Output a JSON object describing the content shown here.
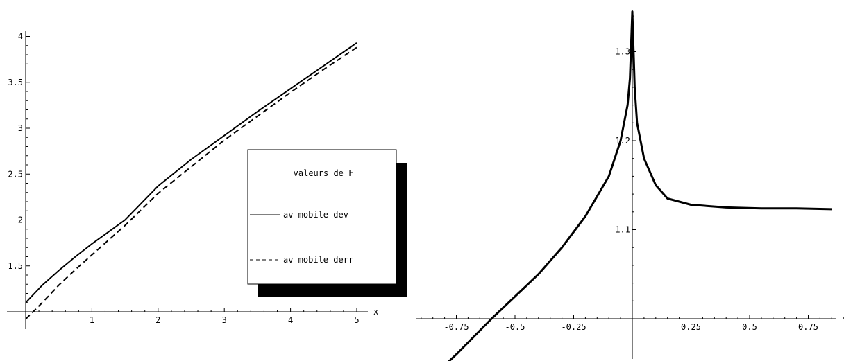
{
  "chart_data": [
    {
      "type": "line",
      "xlabel": "x",
      "ylabel": "",
      "xlim": [
        0,
        5.2
      ],
      "ylim": [
        0.95,
        4.05
      ],
      "x_ticks": [
        1,
        2,
        3,
        4,
        5
      ],
      "y_ticks": [
        1.5,
        2,
        2.5,
        3,
        3.5,
        4
      ],
      "x_tick_labels": [
        "1",
        "2",
        "3",
        "4",
        "5"
      ],
      "y_tick_labels": [
        "1.5",
        "2",
        "2.5",
        "3",
        "3.5",
        "4"
      ],
      "grid": false,
      "legend": {
        "title": "valeurs de F",
        "placement": "lower-right",
        "entries": [
          {
            "label": "av mobile dev",
            "style": "solid"
          },
          {
            "label": "av mobile derr",
            "style": "dashed"
          }
        ]
      },
      "series": [
        {
          "name": "av mobile dev",
          "style": "solid",
          "color": "#000000",
          "points": [
            [
              0,
              1.1
            ],
            [
              0.25,
              1.29
            ],
            [
              0.5,
              1.45
            ],
            [
              0.75,
              1.6
            ],
            [
              1,
              1.74
            ],
            [
              1.5,
              2.0
            ],
            [
              2,
              2.37
            ],
            [
              2.5,
              2.66
            ],
            [
              3,
              2.92
            ],
            [
              3.5,
              3.18
            ],
            [
              4,
              3.43
            ],
            [
              4.5,
              3.68
            ],
            [
              5,
              3.93
            ]
          ]
        },
        {
          "name": "av mobile derr",
          "style": "dashed",
          "color": "#000000",
          "points": [
            [
              0,
              0.92
            ],
            [
              0.25,
              1.1
            ],
            [
              0.5,
              1.29
            ],
            [
              0.75,
              1.46
            ],
            [
              1,
              1.62
            ],
            [
              1.5,
              1.94
            ],
            [
              2,
              2.29
            ],
            [
              2.5,
              2.58
            ],
            [
              3,
              2.87
            ],
            [
              3.5,
              3.13
            ],
            [
              4,
              3.39
            ],
            [
              4.5,
              3.64
            ],
            [
              5,
              3.88
            ]
          ]
        }
      ]
    },
    {
      "type": "line",
      "xlabel": "",
      "ylabel": "",
      "xlim": [
        -0.9,
        0.9
      ],
      "ylim": [
        1.0,
        1.35
      ],
      "x_ticks": [
        -0.75,
        -0.5,
        -0.25,
        0.25,
        0.5,
        0.75
      ],
      "y_ticks": [
        1.1,
        1.2,
        1.3
      ],
      "x_tick_labels": [
        "-0.75",
        "-0.5",
        "-0.25",
        "0.25",
        "0.5",
        "0.75"
      ],
      "y_tick_labels": [
        "1.1",
        "1.2",
        "1.3"
      ],
      "grid": false,
      "series": [
        {
          "style": "solid",
          "color": "#000000",
          "points": [
            [
              -0.85,
              0.935
            ],
            [
              -0.75,
              0.96
            ],
            [
              -0.6,
              1.0
            ],
            [
              -0.5,
              1.025
            ],
            [
              -0.4,
              1.05
            ],
            [
              -0.3,
              1.08
            ],
            [
              -0.2,
              1.115
            ],
            [
              -0.1,
              1.16
            ],
            [
              -0.05,
              1.2
            ],
            [
              -0.02,
              1.24
            ],
            [
              -0.01,
              1.27
            ],
            [
              0,
              1.345
            ],
            [
              0.01,
              1.26
            ],
            [
              0.02,
              1.22
            ],
            [
              0.05,
              1.18
            ],
            [
              0.1,
              1.15
            ],
            [
              0.15,
              1.135
            ],
            [
              0.25,
              1.128
            ],
            [
              0.4,
              1.125
            ],
            [
              0.55,
              1.124
            ],
            [
              0.7,
              1.124
            ],
            [
              0.85,
              1.123
            ]
          ]
        }
      ]
    }
  ]
}
